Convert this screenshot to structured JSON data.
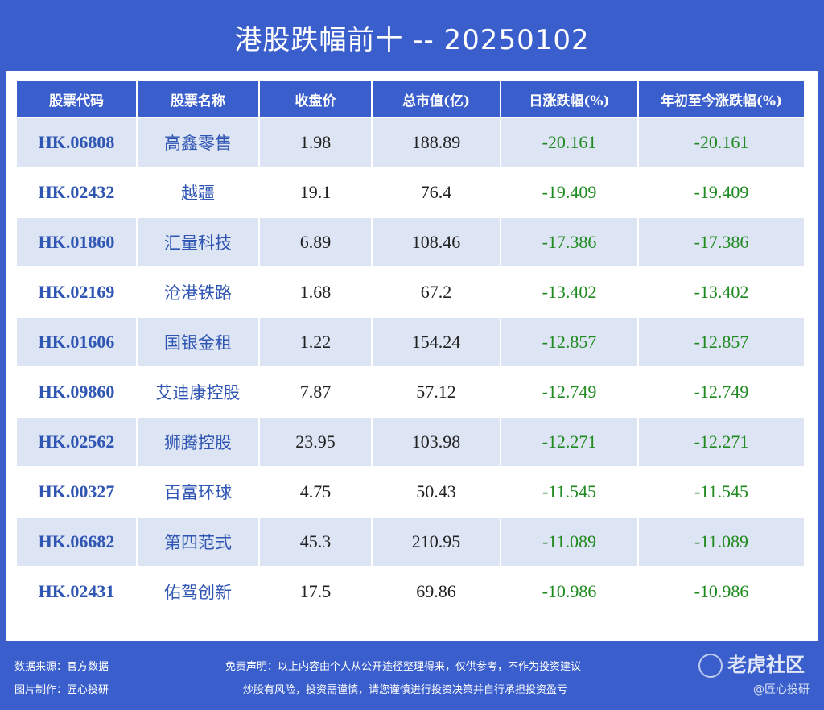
{
  "title": "港股跌幅前十 -- 20250102",
  "table": {
    "headers": [
      "股票代码",
      "股票名称",
      "收盘价",
      "总市值(亿)",
      "日涨跌幅(%)",
      "年初至今涨跌幅(%)"
    ],
    "rows": [
      [
        "HK.06808",
        "高鑫零售",
        "1.98",
        "188.89",
        "-20.161",
        "-20.161"
      ],
      [
        "HK.02432",
        "越疆",
        "19.1",
        "76.4",
        "-19.409",
        "-19.409"
      ],
      [
        "HK.01860",
        "汇量科技",
        "6.89",
        "108.46",
        "-17.386",
        "-17.386"
      ],
      [
        "HK.02169",
        "沧港铁路",
        "1.68",
        "67.2",
        "-13.402",
        "-13.402"
      ],
      [
        "HK.01606",
        "国银金租",
        "1.22",
        "154.24",
        "-12.857",
        "-12.857"
      ],
      [
        "HK.09860",
        "艾迪康控股",
        "7.87",
        "57.12",
        "-12.749",
        "-12.749"
      ],
      [
        "HK.02562",
        "狮腾控股",
        "23.95",
        "103.98",
        "-12.271",
        "-12.271"
      ],
      [
        "HK.00327",
        "百富环球",
        "4.75",
        "50.43",
        "-11.545",
        "-11.545"
      ],
      [
        "HK.06682",
        "第四范式",
        "45.3",
        "210.95",
        "-11.089",
        "-11.089"
      ],
      [
        "HK.02431",
        "佑驾创新",
        "17.5",
        "69.86",
        "-10.986",
        "-10.986"
      ]
    ]
  },
  "footer": {
    "source": "数据来源：官方数据",
    "maker": "图片制作：匠心投研",
    "disclaimer_1": "免责声明：以上内容由个人从公开途径整理得来，仅供参考，不作为投资建议",
    "disclaimer_2": "炒股有风险，投资需谨慎，请您谨慎进行投资决策并自行承担投资盈亏",
    "watermark": "老虎社区",
    "watermark_sub": "@匠心投研"
  },
  "colors": {
    "background": "#3a5fcd",
    "row_alt": "#dde4f4",
    "code_text": "#2f56b3",
    "negative": "#1f8a1f"
  }
}
